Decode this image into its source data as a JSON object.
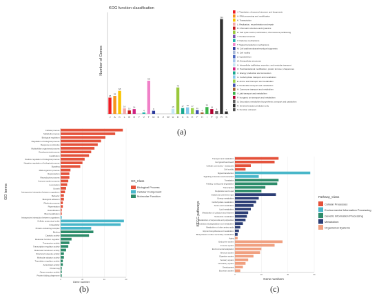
{
  "panel_labels": [
    "(a)",
    "(b)",
    "(c)"
  ],
  "chart_data": [
    {
      "type": "bar",
      "panel": "a",
      "title": "KOG function classification",
      "ylabel": "Number of Genes",
      "ylim": [
        0,
        300
      ],
      "grid": false,
      "legend_position": "right",
      "categories": [
        "J",
        "A",
        "K",
        "L",
        "B",
        "O",
        "Y",
        "V",
        "T",
        "M",
        "N",
        "Z",
        "W",
        "U",
        "D",
        "C",
        "G",
        "E",
        "F",
        "H",
        "I",
        "P",
        "Q",
        "R",
        "S"
      ],
      "values": [
        48,
        53,
        68,
        16,
        10,
        14,
        0,
        4,
        98,
        9,
        0,
        0,
        0,
        15,
        78,
        17,
        19,
        17,
        11,
        4,
        20,
        14,
        8,
        280,
        7
      ],
      "value_labels": [
        "48",
        "53",
        "68",
        "16",
        "10",
        "14",
        "",
        "4",
        "98",
        "9",
        "",
        "",
        "",
        "15",
        "78",
        "17",
        "19",
        "17",
        "11",
        "4",
        "20",
        "14",
        "8",
        "280",
        "7"
      ],
      "colors": [
        "#ee1d24",
        "#f7941d",
        "#f8c400",
        "#f4a6a6",
        "#c31a1a",
        "#d02080",
        "#7b4faf",
        "#20b2aa",
        "#f080c8",
        "#2b3a9c",
        "#a6b8d8",
        "#4a67c0",
        "#a7c8f0",
        "#c4e6f4",
        "#9ac83c",
        "#18a890",
        "#86c9ec",
        "#9bd34a",
        "#4050b0",
        "#a06030",
        "#39b54a",
        "#b00030",
        "#606060",
        "#303030",
        "#303030"
      ],
      "legend": [
        "J: Translation, ribosomal structure and biogenesis",
        "A: RNA processing and modification",
        "K: Transcription",
        "L: Replication, recombination and repair",
        "B: Chromatin structure and dynamics",
        "D: Cell cycle control, cell division, chromosome partitioning",
        "Y: Nuclear structure",
        "V: Defense mechanisms",
        "T: Signal transduction mechanisms",
        "M: Cell wall/membrane/envelope biogenesis",
        "N: Cell motility",
        "Z: Cytoskeleton",
        "W: Extracellular structures",
        "U: Intracellular trafficking, secretion, and vesicular transport",
        "O: Posttranslational modification, protein turnover, chaperones",
        "C: Energy production and conversion",
        "G: Carbohydrate transport and metabolism",
        "E: Amino acid transport and metabolism",
        "F: Nucleotide transport and metabolism",
        "H: Coenzyme transport and metabolism",
        "I: Lipid transport and metabolism",
        "P: Inorganic ion transport and metabolism",
        "Q: Secondary metabolites biosynthesis, transport and catabolism",
        "R: General function prediction only",
        "S: Function unknown"
      ],
      "legend_colors": [
        "#ee1d24",
        "#f7941d",
        "#f8c400",
        "#f4a6a6",
        "#c31a1a",
        "#9ac83c",
        "#7b4faf",
        "#20b2aa",
        "#f080c8",
        "#2b3a9c",
        "#a6b8d8",
        "#4a67c0",
        "#a7c8f0",
        "#c4e6f4",
        "#d02080",
        "#18a890",
        "#86c9ec",
        "#9bd34a",
        "#4050b0",
        "#a06030",
        "#39b54a",
        "#b00030",
        "#606060",
        "#303030",
        "#505050"
      ]
    },
    {
      "type": "bar",
      "panel": "b",
      "orientation": "horizontal",
      "ylabel": "GO terms",
      "xlabel": "Gene number",
      "legend_title": "GO_Class",
      "legend_position": "right",
      "grid": true,
      "xlim": [
        0,
        60
      ],
      "series": [
        {
          "name": "Biological Process",
          "color": "#e4513a"
        },
        {
          "name": "Cellular Component",
          "color": "#48b6c9"
        },
        {
          "name": "Molecular Function",
          "color": "#2d8c6a"
        }
      ],
      "categories": [
        "Cellular process",
        "Metabolic process",
        "Biological regulation",
        "Regulation of biological process",
        "Response to stimulus",
        "Multicellular organismal process",
        "Developmental process",
        "Localization",
        "Positive regulation of biological process",
        "Negative regulation of biological process",
        "Signaling",
        "Multi-organism process",
        "Reproduction",
        "Reproductive process",
        "Immune system process",
        "Locomotion",
        "Growth",
        "Interspecies interaction between organisms",
        "Behavior",
        "Biological adhesion",
        "Rhythmic process",
        "Pigmentation",
        "Detoxification",
        "Biomineralization",
        "Intraspecies interaction between organisms",
        "Cellular anatomical entity",
        "Intracellular",
        "Protein-containing complex",
        "Binding",
        "Catalytic activity",
        "Molecular function regulator",
        "Transporter activity",
        "Transcription regulator activity",
        "Molecular transducer activity",
        "Structural molecule activity",
        "Molecular adaptor activity",
        "Translation regulator activity",
        "Antioxidant activity",
        "Protein tag",
        "Cargo receptor activity",
        "Protein folding chaperone"
      ],
      "groups": [
        0,
        0,
        0,
        0,
        0,
        0,
        0,
        0,
        0,
        0,
        0,
        0,
        0,
        0,
        0,
        0,
        0,
        0,
        0,
        0,
        0,
        0,
        0,
        0,
        1,
        1,
        1,
        1,
        2,
        2,
        2,
        2,
        2,
        2,
        2,
        2,
        2,
        2,
        2,
        2,
        2
      ],
      "values": [
        57,
        50,
        41,
        37,
        34,
        31,
        28,
        26,
        22,
        20,
        18,
        9,
        8,
        8,
        7,
        6,
        5,
        4,
        3,
        3,
        2,
        2,
        1,
        1,
        1,
        58,
        55,
        28,
        30,
        26,
        10,
        8,
        7,
        5,
        3,
        3,
        2,
        2,
        1,
        1,
        1
      ]
    },
    {
      "type": "bar",
      "panel": "c",
      "orientation": "horizontal",
      "ylabel": "KEGG pathways",
      "xlabel": "Gene numbers",
      "legend_title": "Pathway_Class",
      "legend_position": "right",
      "grid": true,
      "xlim": [
        0,
        60
      ],
      "series": [
        {
          "name": "Cellular Processes",
          "color": "#e4513a"
        },
        {
          "name": "Environmental Information Processing",
          "color": "#48b6c9"
        },
        {
          "name": "Genetic Information Processing",
          "color": "#2d8c6a"
        },
        {
          "name": "Metabolism",
          "color": "#2c3e75"
        },
        {
          "name": "Organismal Systems",
          "color": "#f0a080"
        }
      ],
      "categories": [
        "Transport and catabolism",
        "Cell growth and death",
        "Cellular community - eukaryotes",
        "Cell motility",
        "Signal transduction",
        "Signaling molecules and interaction",
        "Translation",
        "Folding, sorting and degradation",
        "Transcription",
        "Replication and repair",
        "Global and overview maps",
        "Energy metabolism",
        "Carbohydrate metabolism",
        "Amino acid metabolism",
        "Lipid metabolism",
        "Metabolism of cofactors and vitamins",
        "Nucleotide metabolism",
        "Metabolism of terpenoids and polyketides",
        "Xenobiotics biodegradation and metabolism",
        "Metabolism of other amino acids",
        "Glycan biosynthesis and metabolism",
        "Biosynthesis of other secondary metabolites",
        "Aging",
        "Endocrine system",
        "Immune system",
        "Environmental adaptation",
        "Nervous system",
        "Digestive system",
        "Sensory system",
        "Circulatory system",
        "Development",
        "Excretory system"
      ],
      "groups": [
        0,
        0,
        0,
        0,
        1,
        1,
        2,
        2,
        2,
        2,
        3,
        3,
        3,
        3,
        3,
        3,
        3,
        3,
        3,
        3,
        3,
        3,
        4,
        4,
        4,
        4,
        4,
        4,
        4,
        4,
        4,
        4
      ],
      "values": [
        33,
        30,
        12,
        8,
        57,
        18,
        33,
        32,
        23,
        20,
        31,
        18,
        16,
        14,
        12,
        10,
        9,
        8,
        6,
        4,
        3,
        2,
        2,
        36,
        30,
        20,
        19,
        14,
        10,
        8,
        6,
        4
      ]
    }
  ]
}
